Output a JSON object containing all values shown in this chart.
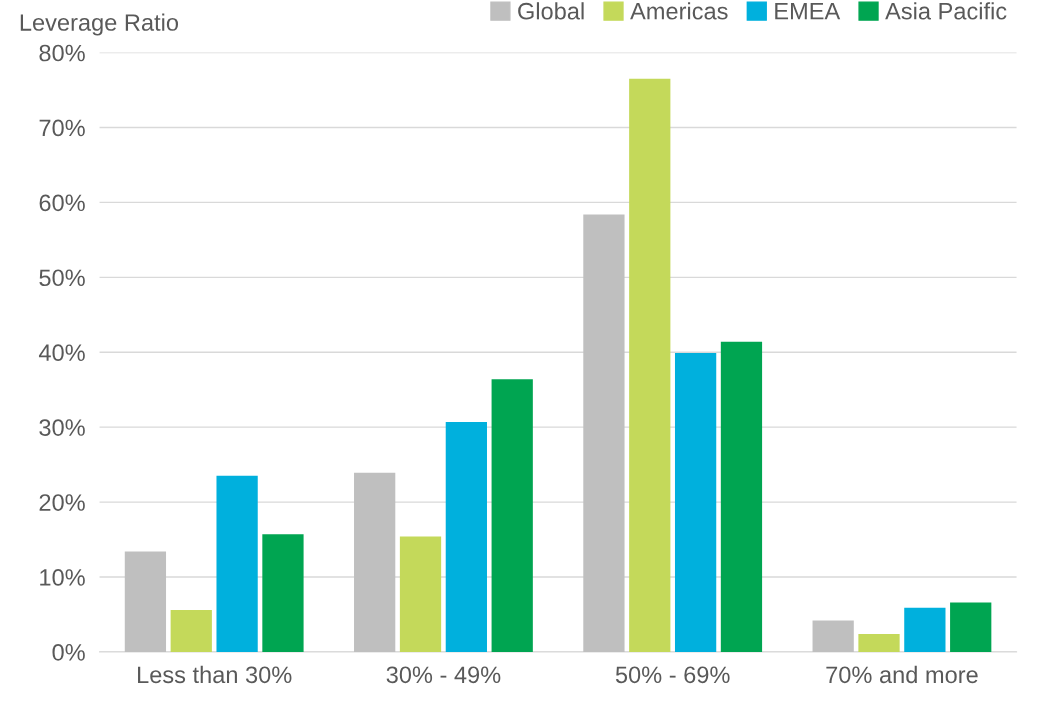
{
  "chart_data": {
    "type": "bar",
    "ylabel": "Leverage Ratio",
    "categories": [
      "Less than 30%",
      "30% - 49%",
      "50% - 69%",
      "70% and more"
    ],
    "series": [
      {
        "name": "Global",
        "color": "#bfbfbf",
        "values": [
          13.4,
          23.9,
          58.4,
          4.2
        ]
      },
      {
        "name": "Americas",
        "color": "#c4d95a",
        "values": [
          5.6,
          15.4,
          76.5,
          2.4
        ]
      },
      {
        "name": "EMEA",
        "color": "#00b0dd",
        "values": [
          23.5,
          30.7,
          39.9,
          5.9
        ]
      },
      {
        "name": "Asia Pacific",
        "color": "#00a551",
        "values": [
          15.7,
          36.4,
          41.4,
          6.6
        ]
      }
    ],
    "ylim": [
      0,
      80
    ],
    "yticks": [
      {
        "value": 0,
        "label": "0%"
      },
      {
        "value": 10,
        "label": "10%"
      },
      {
        "value": 20,
        "label": "20%"
      },
      {
        "value": 30,
        "label": "30%"
      },
      {
        "value": 40,
        "label": "40%"
      },
      {
        "value": 50,
        "label": "50%"
      },
      {
        "value": 60,
        "label": "60%"
      },
      {
        "value": 70,
        "label": "70%"
      },
      {
        "value": 80,
        "label": "80%"
      }
    ],
    "grid": "y",
    "legend": "top right"
  }
}
